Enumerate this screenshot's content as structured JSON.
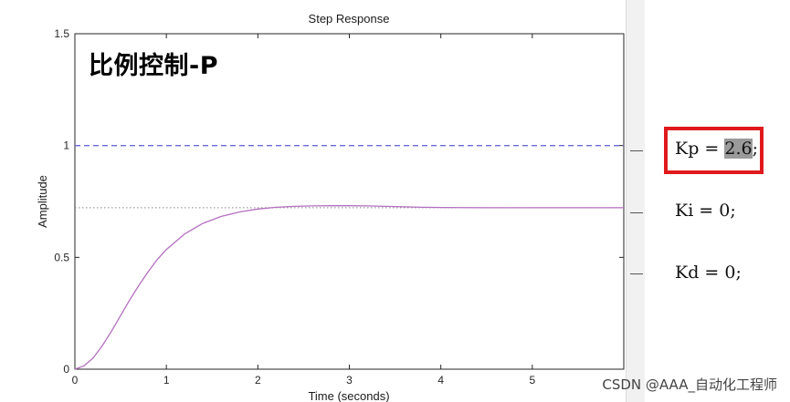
{
  "chart_data": {
    "type": "line",
    "title": "Step Response",
    "xlabel": "Time (seconds)",
    "ylabel": "Amplitude",
    "xlim": [
      0,
      6
    ],
    "ylim": [
      0,
      1.5
    ],
    "x_ticks": [
      "0",
      "1",
      "2",
      "3",
      "4",
      "5"
    ],
    "y_ticks": [
      "0",
      "0.5",
      "1",
      "1.5"
    ],
    "grid": false,
    "reference_lines": {
      "setpoint": 1.0,
      "final_value": 0.722
    },
    "series": [
      {
        "x": [
          0,
          0.1,
          0.2,
          0.3,
          0.4,
          0.5,
          0.6,
          0.7,
          0.8,
          0.9,
          1.0,
          1.2,
          1.4,
          1.6,
          1.8,
          2.0,
          2.2,
          2.4,
          2.6,
          2.8,
          3.0,
          3.2,
          3.4,
          3.6,
          3.8,
          4.0,
          4.5,
          5.0,
          5.5,
          6.0
        ],
        "y": [
          0,
          0.015,
          0.05,
          0.105,
          0.17,
          0.24,
          0.31,
          0.375,
          0.435,
          0.49,
          0.535,
          0.605,
          0.652,
          0.683,
          0.703,
          0.716,
          0.724,
          0.728,
          0.73,
          0.731,
          0.731,
          0.73,
          0.728,
          0.726,
          0.724,
          0.723,
          0.722,
          0.722,
          0.722,
          0.722
        ]
      }
    ],
    "colors": {
      "response": "#b46fc0",
      "setpoint": "#6a6ad8",
      "final_value": "#888888",
      "frame": "#262626"
    }
  },
  "overlay_title": "比例控制-P",
  "editor": {
    "lines": [
      {
        "prefix": "Kp = ",
        "value": "2.6",
        "suffix": ";"
      },
      {
        "prefix": "Ki = ",
        "value": "0",
        "suffix": ";"
      },
      {
        "prefix": "Kd = ",
        "value": "0",
        "suffix": ";"
      }
    ]
  },
  "watermark": "CSDN @AAA_自动化工程师"
}
